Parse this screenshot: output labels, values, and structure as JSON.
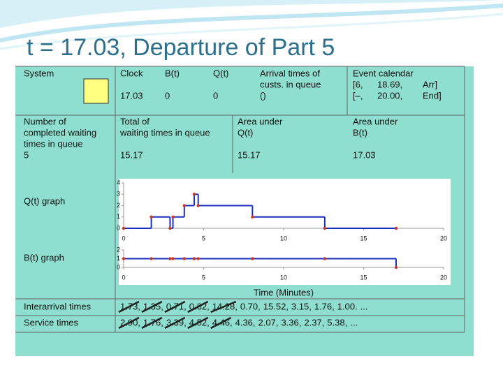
{
  "title": "t = 17.03, Departure of Part 5",
  "state": {
    "system": "System",
    "clock": {
      "header": "Clock",
      "value": "17.03"
    },
    "b": {
      "header": "B(t)",
      "value": "0"
    },
    "q": {
      "header": "Q(t)",
      "value": "0"
    },
    "arrival_times": {
      "header": [
        "Arrival times of",
        "custs. in queue"
      ],
      "value": "()"
    },
    "event_calendar": {
      "header": "Event calendar",
      "rows": [
        [
          "[6,",
          "18.69,",
          "Arr]"
        ],
        [
          "[–,",
          "20.00,",
          "End]"
        ]
      ]
    }
  },
  "statistics": [
    {
      "header": [
        "Number of",
        "completed waiting",
        "times in queue"
      ],
      "value": "5"
    },
    {
      "header": [
        "Total of",
        "waiting times in queue"
      ],
      "value": "15.17"
    },
    {
      "header": [
        "Area under",
        "Q(t)"
      ],
      "value": "15.17"
    },
    {
      "header": [
        "Area under",
        "B(t)"
      ],
      "value": "17.03"
    }
  ],
  "q_graph": {
    "label": "Q(t) graph",
    "x": [
      0,
      1.73,
      2.9,
      3.08,
      3.79,
      4.41,
      4.66,
      8.05,
      12.57,
      17.03
    ],
    "values": [
      0,
      1,
      0,
      1,
      2,
      3,
      2,
      1,
      0,
      0
    ],
    "xlim": [
      0,
      20
    ],
    "ylim": [
      0,
      4
    ],
    "xticks": [
      0,
      5,
      10,
      15,
      20
    ],
    "yticks": [
      0,
      1,
      2,
      3,
      4
    ]
  },
  "b_graph": {
    "label": "B(t) graph",
    "x": [
      0,
      1.73,
      2.9,
      3.08,
      3.79,
      4.41,
      4.66,
      8.05,
      12.57,
      17.03
    ],
    "values": [
      1,
      1,
      1,
      1,
      1,
      1,
      1,
      1,
      1,
      0
    ],
    "xlim": [
      0,
      20
    ],
    "ylim": [
      0,
      2
    ],
    "xticks": [
      0,
      5,
      10,
      15,
      20
    ],
    "yticks": [
      0,
      1,
      2
    ]
  },
  "x_label": "Time (Minutes)",
  "interarrival": {
    "label": "Interarrival times",
    "items": [
      "1.73,",
      "1.35,",
      "0.71,",
      "0.62,",
      "14.28,",
      "0.70,",
      "15.52,",
      "3.15,",
      "1.76,",
      "1.00.",
      "..."
    ]
  },
  "service": {
    "label": "Service times",
    "items": [
      "2.90,",
      "1.76,",
      "3.39,",
      "4.52,",
      "4.46,",
      "4.36,",
      "2.07,",
      "3.36,",
      "2.37,",
      "5.38,",
      "..."
    ]
  }
}
